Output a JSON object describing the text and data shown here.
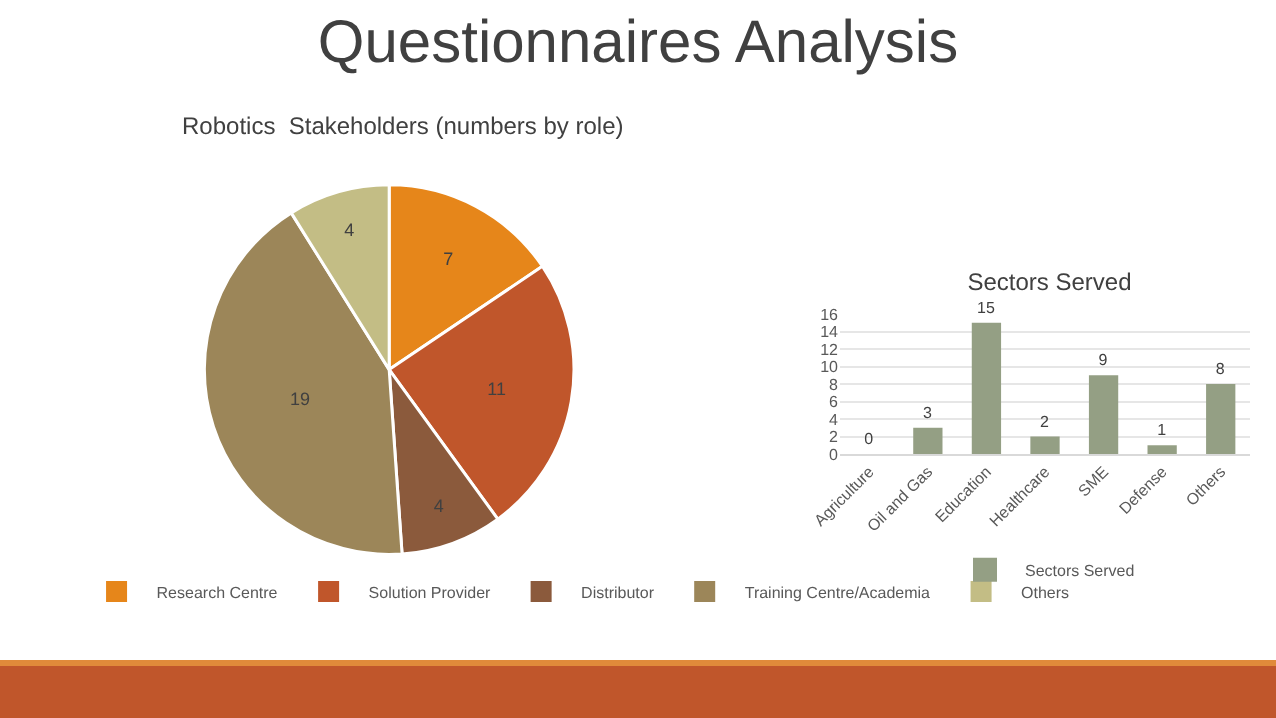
{
  "chart_data": [
    {
      "type": "pie",
      "title": "Questionnaires Analysis",
      "subtitle": "Robotics  Stakeholders (numbers by role)",
      "categories": [
        "Research Centre",
        "Solution Provider",
        "Distributor",
        "Training Centre/Academia",
        "Others"
      ],
      "values": [
        7,
        11,
        4,
        19,
        4
      ],
      "colors": [
        "#e6861a",
        "#c0562b",
        "#8b5a3c",
        "#9c8659",
        "#c3bd85"
      ],
      "data_labels": true,
      "legend": "bottom"
    },
    {
      "type": "bar",
      "title": "Sectors Served",
      "categories": [
        "Agriculture",
        "Oil and Gas",
        "Education",
        "Healthcare",
        "SME",
        "Defense",
        "Others"
      ],
      "series": [
        {
          "name": "Sectors Served",
          "color": "#949f84",
          "values": [
            0,
            3,
            15,
            2,
            9,
            1,
            8
          ]
        }
      ],
      "ylim": [
        0,
        16
      ],
      "yticks": [
        0,
        2,
        4,
        6,
        8,
        10,
        12,
        14,
        16
      ],
      "grid": "y",
      "data_labels": true,
      "legend": "bottom"
    }
  ]
}
